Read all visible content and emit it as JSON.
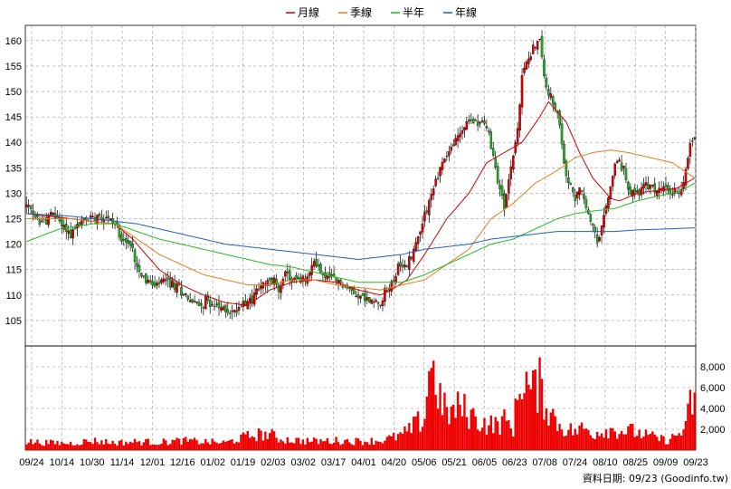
{
  "legend": [
    {
      "label": "月線",
      "color": "#cc0000"
    },
    {
      "label": "季線",
      "color": "#e87d1e"
    },
    {
      "label": "半年",
      "color": "#22bb22"
    },
    {
      "label": "年線",
      "color": "#1f5fbf"
    }
  ],
  "footer": "資料日期: 09/23 (Goodinfo.tw)",
  "colors": {
    "up": "#dd0000",
    "down": "#22aa22",
    "volume": "#ee0000",
    "grid": "#999999"
  },
  "chart_data": [
    {
      "type": "candlestick",
      "x_ticks": [
        "09/24",
        "10/14",
        "10/30",
        "11/14",
        "12/01",
        "12/16",
        "01/02",
        "01/19",
        "02/03",
        "03/02",
        "03/17",
        "04/01",
        "04/20",
        "05/06",
        "05/21",
        "06/05",
        "06/23",
        "07/08",
        "07/24",
        "08/10",
        "08/25",
        "09/09",
        "09/23"
      ],
      "ylim": [
        100,
        163
      ],
      "y_ticks": [
        105,
        110,
        115,
        120,
        125,
        130,
        135,
        140,
        145,
        150,
        155,
        160
      ],
      "grid": true,
      "legend_position": "top-center",
      "price_path": [
        [
          0,
          127.5
        ],
        [
          4,
          125
        ],
        [
          8,
          124.5
        ],
        [
          12,
          126
        ],
        [
          16,
          124
        ],
        [
          20,
          122
        ],
        [
          24,
          124
        ],
        [
          28,
          125
        ],
        [
          32,
          126
        ],
        [
          36,
          125.5
        ],
        [
          40,
          124
        ],
        [
          44,
          121
        ],
        [
          48,
          119
        ],
        [
          50,
          116
        ],
        [
          54,
          113
        ],
        [
          58,
          111.5
        ],
        [
          62,
          113
        ],
        [
          66,
          112
        ],
        [
          70,
          111
        ],
        [
          74,
          109
        ],
        [
          78,
          108
        ],
        [
          82,
          109
        ],
        [
          86,
          107.5
        ],
        [
          90,
          107
        ],
        [
          94,
          106.5
        ],
        [
          98,
          109
        ],
        [
          102,
          109
        ],
        [
          104,
          111
        ],
        [
          108,
          112
        ],
        [
          112,
          113
        ],
        [
          114,
          111
        ],
        [
          116,
          114
        ],
        [
          120,
          113
        ],
        [
          124,
          112.5
        ],
        [
          128,
          114
        ],
        [
          130,
          117
        ],
        [
          134,
          114
        ],
        [
          138,
          113
        ],
        [
          142,
          112.5
        ],
        [
          146,
          111
        ],
        [
          150,
          110
        ],
        [
          154,
          109
        ],
        [
          158,
          108.5
        ],
        [
          160,
          109
        ],
        [
          164,
          111.5
        ],
        [
          168,
          115
        ],
        [
          172,
          116
        ],
        [
          176,
          120
        ],
        [
          180,
          126
        ],
        [
          184,
          131
        ],
        [
          188,
          136
        ],
        [
          192,
          139
        ],
        [
          196,
          142
        ],
        [
          200,
          144
        ],
        [
          204,
          144.5
        ],
        [
          208,
          143
        ],
        [
          212,
          135
        ],
        [
          216,
          127
        ],
        [
          218,
          133
        ],
        [
          222,
          142
        ],
        [
          224,
          153
        ],
        [
          228,
          158
        ],
        [
          232,
          160
        ],
        [
          234,
          153
        ],
        [
          236,
          150
        ],
        [
          240,
          145
        ],
        [
          242,
          140
        ],
        [
          244,
          133
        ],
        [
          248,
          129
        ],
        [
          250,
          131
        ],
        [
          254,
          126
        ],
        [
          258,
          120
        ],
        [
          260,
          123
        ],
        [
          264,
          131
        ],
        [
          266,
          136
        ],
        [
          270,
          135
        ],
        [
          272,
          130
        ],
        [
          276,
          130
        ],
        [
          280,
          131.5
        ],
        [
          284,
          130.5
        ],
        [
          288,
          131
        ],
        [
          292,
          130
        ],
        [
          296,
          131
        ],
        [
          298,
          134
        ],
        [
          300,
          140
        ],
        [
          302,
          141
        ]
      ],
      "ma": {
        "月線": [
          [
            0,
            126
          ],
          [
            20,
            125
          ],
          [
            40,
            124
          ],
          [
            48,
            121
          ],
          [
            60,
            115
          ],
          [
            70,
            112
          ],
          [
            80,
            110
          ],
          [
            90,
            108.5
          ],
          [
            100,
            108
          ],
          [
            110,
            111
          ],
          [
            120,
            112.5
          ],
          [
            130,
            113
          ],
          [
            140,
            112.5
          ],
          [
            150,
            111
          ],
          [
            160,
            110
          ],
          [
            165,
            111
          ],
          [
            172,
            113
          ],
          [
            180,
            118
          ],
          [
            190,
            125
          ],
          [
            200,
            130
          ],
          [
            208,
            136
          ],
          [
            216,
            138
          ],
          [
            224,
            140
          ],
          [
            232,
            145
          ],
          [
            236,
            148
          ],
          [
            244,
            144
          ],
          [
            250,
            138
          ],
          [
            256,
            133
          ],
          [
            260,
            131
          ],
          [
            264,
            129
          ],
          [
            268,
            128.5
          ],
          [
            276,
            130
          ],
          [
            284,
            130.5
          ],
          [
            294,
            131
          ],
          [
            302,
            133
          ]
        ],
        "季線": [
          [
            0,
            125
          ],
          [
            20,
            125
          ],
          [
            40,
            124
          ],
          [
            50,
            121
          ],
          [
            60,
            118
          ],
          [
            70,
            116
          ],
          [
            80,
            114
          ],
          [
            90,
            113
          ],
          [
            100,
            112
          ],
          [
            110,
            112
          ],
          [
            120,
            113
          ],
          [
            130,
            113
          ],
          [
            140,
            112
          ],
          [
            150,
            111.5
          ],
          [
            160,
            111
          ],
          [
            170,
            112
          ],
          [
            180,
            113
          ],
          [
            190,
            116
          ],
          [
            200,
            119
          ],
          [
            210,
            125
          ],
          [
            220,
            128
          ],
          [
            230,
            132
          ],
          [
            240,
            134.5
          ],
          [
            248,
            137
          ],
          [
            256,
            138
          ],
          [
            264,
            138.5
          ],
          [
            272,
            138
          ],
          [
            282,
            137
          ],
          [
            292,
            136
          ],
          [
            302,
            133
          ]
        ],
        "半年": [
          [
            0,
            120.5
          ],
          [
            15,
            123
          ],
          [
            30,
            124
          ],
          [
            40,
            124
          ],
          [
            50,
            122.5
          ],
          [
            60,
            121
          ],
          [
            70,
            120
          ],
          [
            80,
            119
          ],
          [
            90,
            118
          ],
          [
            100,
            117
          ],
          [
            110,
            116
          ],
          [
            120,
            115.5
          ],
          [
            130,
            114.5
          ],
          [
            140,
            113.5
          ],
          [
            150,
            112.5
          ],
          [
            160,
            112.5
          ],
          [
            170,
            112.5
          ],
          [
            180,
            114
          ],
          [
            190,
            116
          ],
          [
            200,
            118
          ],
          [
            210,
            120
          ],
          [
            220,
            121
          ],
          [
            230,
            123
          ],
          [
            240,
            125
          ],
          [
            248,
            126
          ],
          [
            256,
            126.5
          ],
          [
            266,
            127
          ],
          [
            276,
            128.5
          ],
          [
            286,
            129.5
          ],
          [
            296,
            130.5
          ],
          [
            302,
            132
          ]
        ],
        "年線": [
          [
            0,
            126
          ],
          [
            20,
            125.5
          ],
          [
            40,
            124.5
          ],
          [
            50,
            124
          ],
          [
            60,
            123
          ],
          [
            70,
            122
          ],
          [
            80,
            121
          ],
          [
            90,
            120
          ],
          [
            100,
            119.5
          ],
          [
            110,
            119
          ],
          [
            120,
            118.5
          ],
          [
            130,
            118
          ],
          [
            140,
            117.5
          ],
          [
            150,
            117
          ],
          [
            160,
            117.5
          ],
          [
            170,
            118
          ],
          [
            180,
            119
          ],
          [
            190,
            119.5
          ],
          [
            200,
            120
          ],
          [
            210,
            121
          ],
          [
            220,
            121.5
          ],
          [
            230,
            122
          ],
          [
            240,
            122.5
          ],
          [
            248,
            122.5
          ],
          [
            256,
            122.5
          ],
          [
            266,
            122.5
          ],
          [
            276,
            122.8
          ],
          [
            290,
            123
          ],
          [
            302,
            123.2
          ]
        ]
      }
    },
    {
      "type": "bar",
      "name": "volume",
      "ylim": [
        0,
        10000
      ],
      "y_ticks": [
        "2,000",
        "4,000",
        "6,000",
        "8,000"
      ],
      "y_tick_values": [
        2000,
        4000,
        6000,
        8000
      ],
      "volume_path": [
        [
          0,
          800
        ],
        [
          10,
          700
        ],
        [
          20,
          650
        ],
        [
          30,
          900
        ],
        [
          40,
          700
        ],
        [
          50,
          800
        ],
        [
          60,
          750
        ],
        [
          70,
          900
        ],
        [
          80,
          800
        ],
        [
          90,
          700
        ],
        [
          96,
          1100
        ],
        [
          100,
          1300
        ],
        [
          104,
          1500
        ],
        [
          110,
          1500
        ],
        [
          114,
          1100
        ],
        [
          118,
          1000
        ],
        [
          124,
          900
        ],
        [
          130,
          850
        ],
        [
          140,
          900
        ],
        [
          150,
          850
        ],
        [
          160,
          900
        ],
        [
          166,
          1200
        ],
        [
          170,
          1500
        ],
        [
          174,
          2000
        ],
        [
          176,
          2500
        ],
        [
          180,
          3000
        ],
        [
          182,
          8500
        ],
        [
          186,
          6000
        ],
        [
          188,
          4000
        ],
        [
          192,
          3500
        ],
        [
          196,
          4200
        ],
        [
          200,
          3500
        ],
        [
          206,
          2600
        ],
        [
          212,
          2400
        ],
        [
          216,
          2800
        ],
        [
          220,
          2200
        ],
        [
          224,
          7500
        ],
        [
          228,
          5500
        ],
        [
          232,
          6200
        ],
        [
          236,
          4000
        ],
        [
          240,
          2600
        ],
        [
          244,
          2000
        ],
        [
          248,
          1800
        ],
        [
          252,
          2100
        ],
        [
          256,
          1600
        ],
        [
          262,
          2000
        ],
        [
          268,
          1900
        ],
        [
          274,
          1800
        ],
        [
          280,
          1400
        ],
        [
          290,
          900
        ],
        [
          298,
          2000
        ],
        [
          300,
          4500
        ],
        [
          302,
          4800
        ]
      ]
    }
  ]
}
